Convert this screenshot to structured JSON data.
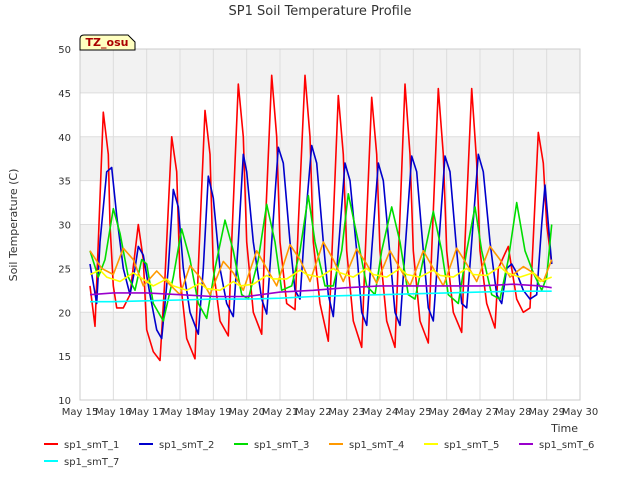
{
  "chart_data": {
    "type": "line",
    "title": "SP1 Soil Temperature Profile",
    "xlabel": "Time",
    "ylabel": "Soil Temperature (C)",
    "annotation": "TZ_osu",
    "xlim": [
      15,
      30
    ],
    "ylim": [
      10,
      50
    ],
    "x_ticks": [
      {
        "value": 15,
        "label": "May 15"
      },
      {
        "value": 16,
        "label": "May 16"
      },
      {
        "value": 17,
        "label": "May 17"
      },
      {
        "value": 18,
        "label": "May 18"
      },
      {
        "value": 19,
        "label": "May 19"
      },
      {
        "value": 20,
        "label": "May 20"
      },
      {
        "value": 21,
        "label": "May 21"
      },
      {
        "value": 22,
        "label": "May 22"
      },
      {
        "value": 23,
        "label": "May 23"
      },
      {
        "value": 24,
        "label": "May 24"
      },
      {
        "value": 25,
        "label": "May 25"
      },
      {
        "value": 26,
        "label": "May 26"
      },
      {
        "value": 27,
        "label": "May 27"
      },
      {
        "value": 28,
        "label": "May 28"
      },
      {
        "value": 29,
        "label": "May 29"
      },
      {
        "value": 30,
        "label": "May 30"
      }
    ],
    "y_ticks": [
      10,
      15,
      20,
      25,
      30,
      35,
      40,
      45,
      50
    ],
    "series": [
      {
        "name": "sp1_smT_1",
        "color": "#ff0000",
        "x": [
          15.3,
          15.45,
          15.55,
          15.7,
          15.85,
          15.9,
          16.0,
          16.1,
          16.3,
          16.5,
          16.75,
          16.9,
          17.0,
          17.2,
          17.4,
          17.55,
          17.75,
          17.9,
          18.0,
          18.2,
          18.45,
          18.55,
          18.75,
          18.9,
          19.0,
          19.2,
          19.45,
          19.55,
          19.75,
          19.9,
          20.0,
          20.2,
          20.45,
          20.55,
          20.75,
          20.9,
          21.0,
          21.2,
          21.45,
          21.55,
          21.75,
          21.9,
          22.0,
          22.2,
          22.45,
          22.55,
          22.75,
          22.9,
          23.0,
          23.2,
          23.45,
          23.55,
          23.75,
          23.9,
          24.0,
          24.2,
          24.45,
          24.55,
          24.75,
          24.9,
          25.0,
          25.2,
          25.45,
          25.55,
          25.75,
          25.9,
          26.0,
          26.2,
          26.45,
          26.55,
          26.75,
          26.9,
          27.0,
          27.2,
          27.45,
          27.55,
          27.75,
          27.85,
          27.95,
          28.1,
          28.3,
          28.5,
          28.75,
          28.9,
          29.0,
          29.15
        ],
        "y": [
          23.0,
          18.4,
          28.0,
          42.8,
          38.0,
          30.0,
          23.0,
          20.5,
          20.5,
          22.0,
          30.0,
          26.0,
          18.0,
          15.5,
          14.5,
          24.0,
          40.0,
          36.0,
          24.0,
          17.0,
          14.7,
          25.0,
          43.0,
          38.0,
          25.0,
          19.0,
          17.3,
          28.0,
          46.0,
          40.0,
          28.0,
          20.0,
          17.5,
          29.0,
          47.0,
          40.0,
          28.0,
          21.0,
          20.3,
          30.0,
          47.0,
          40.0,
          28.0,
          21.0,
          16.7,
          26.0,
          44.7,
          38.0,
          27.0,
          19.0,
          16.0,
          26.0,
          44.5,
          38.0,
          27.0,
          19.0,
          16.0,
          26.0,
          46.0,
          38.0,
          27.0,
          19.0,
          16.5,
          27.0,
          45.5,
          38.0,
          27.0,
          20.0,
          17.7,
          28.0,
          45.5,
          37.0,
          27.0,
          21.0,
          18.2,
          25.0,
          26.7,
          27.5,
          25.0,
          21.5,
          20.0,
          20.5,
          40.5,
          37.0,
          30.0,
          25.5
        ]
      },
      {
        "name": "sp1_smT_2",
        "color": "#0000cc",
        "x": [
          15.3,
          15.5,
          15.6,
          15.8,
          15.95,
          16.1,
          16.3,
          16.5,
          16.65,
          16.75,
          16.9,
          17.1,
          17.3,
          17.45,
          17.65,
          17.8,
          17.95,
          18.1,
          18.3,
          18.55,
          18.7,
          18.85,
          19.0,
          19.2,
          19.4,
          19.6,
          19.75,
          19.9,
          20.0,
          20.2,
          20.45,
          20.6,
          20.75,
          20.95,
          21.1,
          21.3,
          21.45,
          21.6,
          21.75,
          21.95,
          22.1,
          22.3,
          22.45,
          22.6,
          22.75,
          22.95,
          23.1,
          23.3,
          23.45,
          23.6,
          23.75,
          23.95,
          24.1,
          24.3,
          24.45,
          24.6,
          24.75,
          24.95,
          25.1,
          25.3,
          25.45,
          25.6,
          25.75,
          25.95,
          26.1,
          26.3,
          26.45,
          26.6,
          26.75,
          26.95,
          27.1,
          27.3,
          27.5,
          27.65,
          27.8,
          27.95,
          28.1,
          28.3,
          28.5,
          28.7,
          28.85,
          28.95,
          29.15
        ],
        "y": [
          25.5,
          21.0,
          28.0,
          36.0,
          36.5,
          31.0,
          25.0,
          22.0,
          25.0,
          27.5,
          26.5,
          22.0,
          18.0,
          17.0,
          25.0,
          34.0,
          32.0,
          25.0,
          20.0,
          17.5,
          25.0,
          35.5,
          33.0,
          25.0,
          21.0,
          19.5,
          28.0,
          38.0,
          36.0,
          28.0,
          21.5,
          19.8,
          28.0,
          38.8,
          37.0,
          28.0,
          22.5,
          21.5,
          30.0,
          39.0,
          37.0,
          28.0,
          22.0,
          19.5,
          27.0,
          37.0,
          35.0,
          27.0,
          20.0,
          18.5,
          27.0,
          37.0,
          35.0,
          26.5,
          20.0,
          18.5,
          27.0,
          37.8,
          36.0,
          27.0,
          20.5,
          19.0,
          27.0,
          37.8,
          36.0,
          27.0,
          21.0,
          20.5,
          28.0,
          38.0,
          36.0,
          28.0,
          22.0,
          21.0,
          25.0,
          25.5,
          24.5,
          22.5,
          21.5,
          22.0,
          30.0,
          34.5,
          25.5
        ]
      },
      {
        "name": "sp1_smT_3",
        "color": "#00dd00",
        "x": [
          15.3,
          15.55,
          15.75,
          16.0,
          16.2,
          16.45,
          16.65,
          16.85,
          17.0,
          17.2,
          17.5,
          17.8,
          18.05,
          18.3,
          18.55,
          18.8,
          19.05,
          19.35,
          19.6,
          19.85,
          20.05,
          20.35,
          20.6,
          20.85,
          21.05,
          21.35,
          21.6,
          21.85,
          22.05,
          22.35,
          22.6,
          22.85,
          23.05,
          23.35,
          23.6,
          23.85,
          24.05,
          24.35,
          24.6,
          24.85,
          25.05,
          25.35,
          25.6,
          25.85,
          26.05,
          26.35,
          26.6,
          26.85,
          27.05,
          27.35,
          27.6,
          27.85,
          28.1,
          28.35,
          28.6,
          28.85,
          29.0,
          29.15
        ],
        "y": [
          27.0,
          24.0,
          26.0,
          31.8,
          29.0,
          24.0,
          22.5,
          26.0,
          25.5,
          21.0,
          19.0,
          24.0,
          29.5,
          26.0,
          21.0,
          19.3,
          25.0,
          30.5,
          27.0,
          22.0,
          21.5,
          26.0,
          32.3,
          28.0,
          22.5,
          23.0,
          27.0,
          33.3,
          28.0,
          23.0,
          23.0,
          27.0,
          33.5,
          28.0,
          23.0,
          22.0,
          27.0,
          32.0,
          28.0,
          22.0,
          21.5,
          27.0,
          31.5,
          27.0,
          22.0,
          21.0,
          27.0,
          32.0,
          27.0,
          22.0,
          21.5,
          26.0,
          32.5,
          27.0,
          24.5,
          22.5,
          24.0,
          30.0
        ]
      },
      {
        "name": "sp1_smT_4",
        "color": "#ff9900",
        "x": [
          15.3,
          15.65,
          16.0,
          16.3,
          16.6,
          16.9,
          17.3,
          17.6,
          18.0,
          18.3,
          18.6,
          18.9,
          19.3,
          19.6,
          19.9,
          20.3,
          20.6,
          20.9,
          21.3,
          21.6,
          21.9,
          22.3,
          22.6,
          22.9,
          23.3,
          23.6,
          23.9,
          24.3,
          24.6,
          24.9,
          25.3,
          25.6,
          25.9,
          26.3,
          26.6,
          26.9,
          27.3,
          27.6,
          27.9,
          28.3,
          28.6,
          28.9,
          29.15
        ],
        "y": [
          27.0,
          25.0,
          24.3,
          27.3,
          26.0,
          23.0,
          24.7,
          23.5,
          22.0,
          25.3,
          24.0,
          22.0,
          25.8,
          24.5,
          22.5,
          27.0,
          25.0,
          23.0,
          27.7,
          26.0,
          23.5,
          28.0,
          26.0,
          23.5,
          27.2,
          25.5,
          23.3,
          27.0,
          25.0,
          23.0,
          27.0,
          25.0,
          23.0,
          27.3,
          25.5,
          23.5,
          27.5,
          26.0,
          24.0,
          25.2,
          24.5,
          23.5,
          26.0
        ]
      },
      {
        "name": "sp1_smT_5",
        "color": "#ffff00",
        "x": [
          15.3,
          15.6,
          15.8,
          16.2,
          16.6,
          16.8,
          17.2,
          17.6,
          17.8,
          18.2,
          18.6,
          18.8,
          19.2,
          19.6,
          19.8,
          20.2,
          20.6,
          20.8,
          21.2,
          21.6,
          21.8,
          22.2,
          22.6,
          22.8,
          23.2,
          23.6,
          23.8,
          24.2,
          24.6,
          24.8,
          25.2,
          25.6,
          25.8,
          26.2,
          26.6,
          26.8,
          27.2,
          27.6,
          27.8,
          28.2,
          28.6,
          28.8,
          29.15
        ],
        "y": [
          24.3,
          24.8,
          24.0,
          23.5,
          24.5,
          24.0,
          23.0,
          23.8,
          23.0,
          22.5,
          23.3,
          22.7,
          22.5,
          23.5,
          23.0,
          23.2,
          24.2,
          23.8,
          23.8,
          24.8,
          24.3,
          24.0,
          25.0,
          24.5,
          24.0,
          25.0,
          24.3,
          24.0,
          25.0,
          24.3,
          24.0,
          24.8,
          24.2,
          24.0,
          25.0,
          24.3,
          24.2,
          25.2,
          24.5,
          24.0,
          24.5,
          23.5,
          24.0
        ]
      },
      {
        "name": "sp1_smT_6",
        "color": "#9900cc",
        "x": [
          15.3,
          16.0,
          17.0,
          18.0,
          19.0,
          20.0,
          21.0,
          22.0,
          23.0,
          24.0,
          25.0,
          26.0,
          27.0,
          28.0,
          28.8,
          29.15
        ],
        "y": [
          22.0,
          22.2,
          22.2,
          22.0,
          21.8,
          21.8,
          22.3,
          22.5,
          22.8,
          23.0,
          23.0,
          23.0,
          23.0,
          23.2,
          23.0,
          22.8
        ]
      },
      {
        "name": "sp1_smT_7",
        "color": "#00ffff",
        "x": [
          15.3,
          16.0,
          17.0,
          18.0,
          19.0,
          20.0,
          21.0,
          22.0,
          23.0,
          24.0,
          25.0,
          26.0,
          27.0,
          28.0,
          29.15
        ],
        "y": [
          21.2,
          21.2,
          21.3,
          21.4,
          21.5,
          21.5,
          21.6,
          21.8,
          21.9,
          22.0,
          22.1,
          22.2,
          22.3,
          22.4,
          22.4
        ]
      }
    ]
  }
}
